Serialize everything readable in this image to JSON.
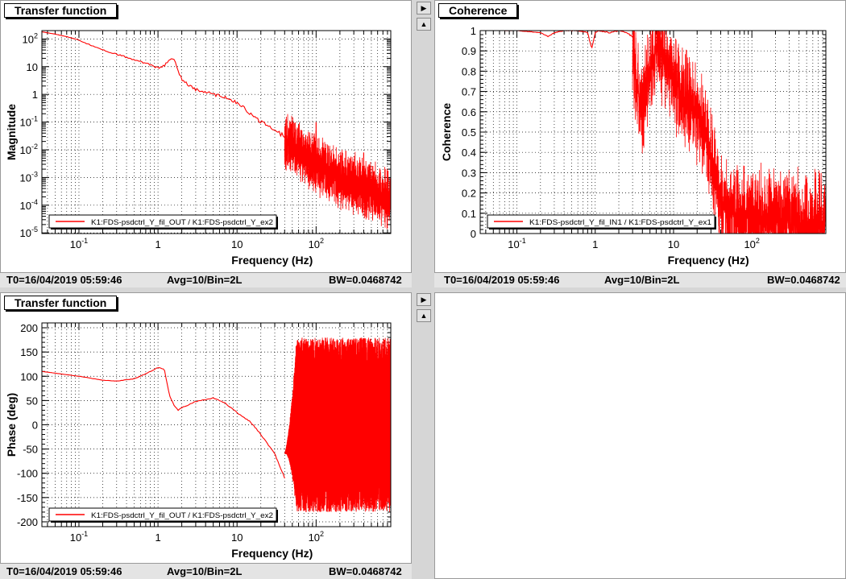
{
  "panels": [
    {
      "id": "tl",
      "title": "Transfer function",
      "status": {
        "t0": "T0=16/04/2019 05:59:46",
        "avg": "Avg=10/Bin=2L",
        "bw": "BW=0.0468742"
      }
    },
    {
      "id": "tr",
      "title": "Coherence",
      "status": {
        "t0": "T0=16/04/2019 05:59:46",
        "avg": "Avg=10/Bin=2L",
        "bw": "BW=0.0468742"
      }
    },
    {
      "id": "bl",
      "title": "Transfer function",
      "status": {
        "t0": "T0=16/04/2019 05:59:46",
        "avg": "Avg=10/Bin=2L",
        "bw": "BW=0.0468742"
      }
    }
  ],
  "buttons": {
    "arrow_right": "▶",
    "arrow_up": "▲"
  },
  "chart_data": [
    {
      "type": "line",
      "panel": "tl",
      "xlabel": "Frequency (Hz)",
      "ylabel": "Magnitude",
      "x_scale": "log",
      "y_scale": "log",
      "xlim": [
        0.034,
        880
      ],
      "ylim": [
        9.5e-06,
        200
      ],
      "x_ticks": [
        {
          "v": 0.1,
          "base": "10",
          "exp": "-1"
        },
        {
          "v": 1,
          "base": "1",
          "exp": ""
        },
        {
          "v": 10,
          "base": "10",
          "exp": ""
        },
        {
          "v": 100,
          "base": "10",
          "exp": "2"
        }
      ],
      "y_ticks": [
        {
          "v": 100,
          "base": "10",
          "exp": "2"
        },
        {
          "v": 10,
          "base": "10",
          "exp": ""
        },
        {
          "v": 1,
          "base": "1",
          "exp": ""
        },
        {
          "v": 0.1,
          "base": "10",
          "exp": "-1"
        },
        {
          "v": 0.01,
          "base": "10",
          "exp": "-2"
        },
        {
          "v": 0.001,
          "base": "10",
          "exp": "-3"
        },
        {
          "v": 0.0001,
          "base": "10",
          "exp": "-4"
        },
        {
          "v": 1e-05,
          "base": "10",
          "exp": "-5"
        }
      ],
      "legend": "top-left-bottom",
      "legend_text": "K1:FDS-psdctrl_Y_fil_OUT / K1:FDS-psdctrl_Y_ex2",
      "series": [
        {
          "name": "K1:FDS-psdctrl_Y_fil_OUT / K1:FDS-psdctrl_Y_ex2",
          "color": "#ff0000",
          "x": [
            0.034,
            0.05,
            0.07,
            0.1,
            0.15,
            0.2,
            0.3,
            0.5,
            0.7,
            1.0,
            1.2,
            1.4,
            1.5,
            1.6,
            1.8,
            2.0,
            2.5,
            3,
            4,
            5,
            7,
            10,
            15,
            20,
            30,
            40,
            50,
            60
          ],
          "y": [
            180,
            150,
            120,
            90,
            55,
            40,
            28,
            18,
            13,
            9,
            11,
            17,
            22,
            18,
            7,
            3.5,
            2,
            1.5,
            1.2,
            1.0,
            0.8,
            0.5,
            0.2,
            0.1,
            0.05,
            0.03,
            0.015,
            0.012
          ],
          "noise_from": 40,
          "noise_to": 880,
          "noise_center": [
            [
              40,
              0.02
            ],
            [
              60,
              0.01
            ],
            [
              100,
              0.003
            ],
            [
              200,
              0.001
            ],
            [
              400,
              0.0004
            ],
            [
              880,
              0.00015
            ]
          ],
          "noise_spread": 1.2,
          "spikes": [
            [
              100,
              0.1
            ],
            [
              100,
              0.05
            ],
            [
              400,
              0.008
            ],
            [
              60,
              0.08
            ]
          ]
        }
      ]
    },
    {
      "type": "line",
      "panel": "tr",
      "xlabel": "Frequency (Hz)",
      "ylabel": "Coherence",
      "x_scale": "log",
      "y_scale": "linear",
      "xlim": [
        0.034,
        880
      ],
      "ylim": [
        0,
        1
      ],
      "x_ticks": [
        {
          "v": 0.1,
          "base": "10",
          "exp": "-1"
        },
        {
          "v": 1,
          "base": "1",
          "exp": ""
        },
        {
          "v": 10,
          "base": "10",
          "exp": ""
        },
        {
          "v": 100,
          "base": "10",
          "exp": "2"
        }
      ],
      "y_ticks": [
        {
          "v": 0,
          "base": "0",
          "exp": ""
        },
        {
          "v": 0.1,
          "base": "0.1",
          "exp": ""
        },
        {
          "v": 0.2,
          "base": "0.2",
          "exp": ""
        },
        {
          "v": 0.3,
          "base": "0.3",
          "exp": ""
        },
        {
          "v": 0.4,
          "base": "0.4",
          "exp": ""
        },
        {
          "v": 0.5,
          "base": "0.5",
          "exp": ""
        },
        {
          "v": 0.6,
          "base": "0.6",
          "exp": ""
        },
        {
          "v": 0.7,
          "base": "0.7",
          "exp": ""
        },
        {
          "v": 0.8,
          "base": "0.8",
          "exp": ""
        },
        {
          "v": 0.9,
          "base": "0.9",
          "exp": ""
        },
        {
          "v": 1,
          "base": "1",
          "exp": ""
        }
      ],
      "legend": "bottom-left",
      "legend_text": "K1:FDS-psdctrl_Y_fil_IN1 / K1:FDS-psdctrl_Y_ex1",
      "series": [
        {
          "name": "K1:FDS-psdctrl_Y_fil_IN1 / K1:FDS-psdctrl_Y_ex1",
          "color": "#ff0000",
          "x": [
            0.034,
            0.1,
            0.2,
            0.25,
            0.3,
            0.4,
            0.6,
            0.8,
            0.9,
            1.0,
            1.1,
            1.5,
            2,
            2.5,
            3
          ],
          "y": [
            1.0,
            1.0,
            0.99,
            0.97,
            0.99,
            1.0,
            1.0,
            0.99,
            0.91,
            0.99,
            1.0,
            0.99,
            1.0,
            0.99,
            0.97
          ],
          "noise_from": 3,
          "noise_to": 880,
          "noise_center": [
            [
              3,
              0.9
            ],
            [
              3.5,
              0.7
            ],
            [
              4,
              0.6
            ],
            [
              5,
              0.8
            ],
            [
              6,
              0.93
            ],
            [
              8,
              0.85
            ],
            [
              12,
              0.7
            ],
            [
              20,
              0.6
            ],
            [
              30,
              0.4
            ],
            [
              40,
              0.15
            ],
            [
              60,
              0.1
            ],
            [
              100,
              0.08
            ],
            [
              200,
              0.07
            ],
            [
              400,
              0.06
            ],
            [
              880,
              0.06
            ]
          ],
          "noise_spread": 0.28,
          "spikes": []
        }
      ]
    },
    {
      "type": "line",
      "panel": "bl",
      "xlabel": "Frequency (Hz)",
      "ylabel": "Phase (deg)",
      "x_scale": "log",
      "y_scale": "linear",
      "xlim": [
        0.034,
        880
      ],
      "ylim": [
        -210,
        210
      ],
      "x_ticks": [
        {
          "v": 0.1,
          "base": "10",
          "exp": "-1"
        },
        {
          "v": 1,
          "base": "1",
          "exp": ""
        },
        {
          "v": 10,
          "base": "10",
          "exp": ""
        },
        {
          "v": 100,
          "base": "10",
          "exp": "2"
        }
      ],
      "y_ticks": [
        {
          "v": 200,
          "base": "200",
          "exp": ""
        },
        {
          "v": 150,
          "base": "150",
          "exp": ""
        },
        {
          "v": 100,
          "base": "100",
          "exp": ""
        },
        {
          "v": 50,
          "base": "50",
          "exp": ""
        },
        {
          "v": 0,
          "base": "0",
          "exp": ""
        },
        {
          "v": -50,
          "base": "-50",
          "exp": ""
        },
        {
          "v": -100,
          "base": "-100",
          "exp": ""
        },
        {
          "v": -150,
          "base": "-150",
          "exp": ""
        },
        {
          "v": -200,
          "base": "-200",
          "exp": ""
        }
      ],
      "legend": "bottom-left",
      "legend_text": "K1:FDS-psdctrl_Y_fil_OUT / K1:FDS-psdctrl_Y_ex2",
      "series": [
        {
          "name": "K1:FDS-psdctrl_Y_fil_OUT / K1:FDS-psdctrl_Y_ex2",
          "color": "#ff0000",
          "x": [
            0.034,
            0.1,
            0.2,
            0.3,
            0.5,
            0.7,
            1.0,
            1.2,
            1.4,
            1.6,
            1.8,
            2.0,
            3,
            4,
            5,
            7,
            10,
            15,
            20,
            30,
            40
          ],
          "y": [
            110,
            100,
            92,
            90,
            95,
            105,
            118,
            115,
            60,
            40,
            30,
            35,
            48,
            52,
            55,
            45,
            25,
            5,
            -20,
            -60,
            -110
          ],
          "noise_from": 40,
          "noise_to": 880,
          "noise_center": [
            [
              40,
              -50
            ],
            [
              50,
              0
            ],
            [
              880,
              0
            ]
          ],
          "noise_spread": 1.0,
          "noise_range": [
            -180,
            180
          ],
          "spikes": []
        }
      ]
    }
  ]
}
